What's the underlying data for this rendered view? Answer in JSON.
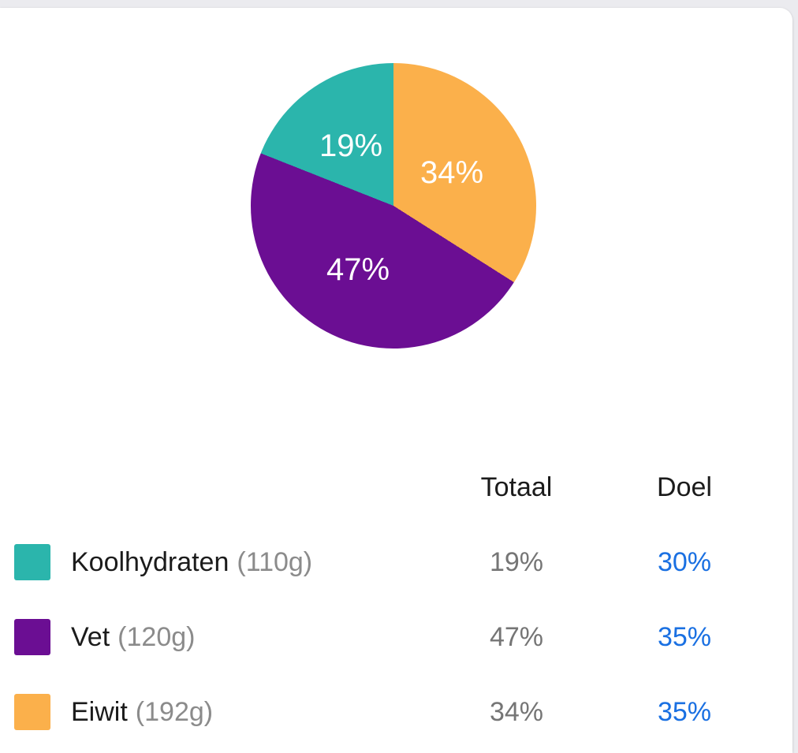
{
  "colors": {
    "page_bg": "#ebebef",
    "card_bg": "#ffffff",
    "text": "#1b1b1b",
    "value_gray": "#757575",
    "amount_gray": "#8b8b8b",
    "accent_blue": "#1a70e2",
    "pie_label": "#ffffff",
    "teal": "#2bb5ac",
    "purple": "#6b0e93",
    "orange": "#fbb04b"
  },
  "chart_data": {
    "type": "pie",
    "title": "",
    "categories": [
      "Koolhydraten",
      "Vet",
      "Eiwit"
    ],
    "values": [
      19,
      47,
      34
    ],
    "unit": "%",
    "colors": [
      "#2bb5ac",
      "#6b0e93",
      "#fbb04b"
    ],
    "legend_position": "bottom-table",
    "segments_clockwise_from_top": [
      {
        "name": "Eiwit",
        "percent": 34,
        "label": "34%",
        "color": "#fbb04b",
        "start_deg": 0,
        "end_deg": 122.4
      },
      {
        "name": "Vet",
        "percent": 47,
        "label": "47%",
        "color": "#6b0e93",
        "start_deg": 122.4,
        "end_deg": 291.6
      },
      {
        "name": "Koolhydraten",
        "percent": 19,
        "label": "19%",
        "color": "#2bb5ac",
        "start_deg": 291.6,
        "end_deg": 360
      }
    ]
  },
  "table": {
    "headers": {
      "totaal": "Totaal",
      "doel": "Doel"
    },
    "rows": [
      {
        "name": "Koolhydraten",
        "amount": "(110g)",
        "totaal": "19%",
        "doel": "30%",
        "color": "#2bb5ac"
      },
      {
        "name": "Vet",
        "amount": "(120g)",
        "totaal": "47%",
        "doel": "35%",
        "color": "#6b0e93"
      },
      {
        "name": "Eiwit",
        "amount": "(192g)",
        "totaal": "34%",
        "doel": "35%",
        "color": "#fbb04b"
      }
    ]
  }
}
